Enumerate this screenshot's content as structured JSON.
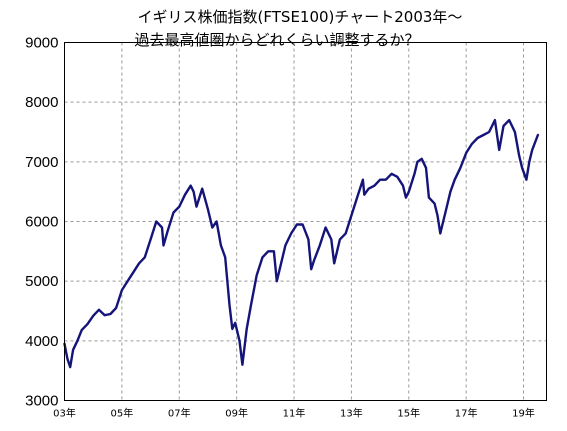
{
  "chart_data": {
    "type": "line",
    "title": [
      "イギリス株価指数(FTSE100)チャート2003年～",
      "過去最高値圏からどれくらい調整するか？"
    ],
    "xlabel": "",
    "ylabel": "",
    "ylim": [
      3000,
      9000
    ],
    "yticks": [
      "3000",
      "4000",
      "5000",
      "6000",
      "7000",
      "8000",
      "9000"
    ],
    "xlim": [
      2003,
      2019.8
    ],
    "xticks": [
      {
        "x": 2003,
        "label": "03年"
      },
      {
        "x": 2005,
        "label": "05年"
      },
      {
        "x": 2007,
        "label": "07年"
      },
      {
        "x": 2009,
        "label": "09年"
      },
      {
        "x": 2011,
        "label": "11年"
      },
      {
        "x": 2013,
        "label": "13年"
      },
      {
        "x": 2015,
        "label": "15年"
      },
      {
        "x": 2017,
        "label": "17年"
      },
      {
        "x": 2019,
        "label": "19年"
      }
    ],
    "grid": true,
    "legend": "none",
    "series": [
      {
        "color": "#14147a",
        "x": [
          2003.0,
          2003.1,
          2003.2,
          2003.3,
          2003.45,
          2003.6,
          2003.8,
          2004.0,
          2004.2,
          2004.4,
          2004.6,
          2004.8,
          2005.0,
          2005.2,
          2005.4,
          2005.6,
          2005.8,
          2006.0,
          2006.2,
          2006.4,
          2006.45,
          2006.6,
          2006.8,
          2007.0,
          2007.2,
          2007.4,
          2007.5,
          2007.6,
          2007.8,
          2008.0,
          2008.15,
          2008.3,
          2008.45,
          2008.6,
          2008.75,
          2008.85,
          2008.95,
          2009.1,
          2009.2,
          2009.35,
          2009.5,
          2009.7,
          2009.9,
          2010.1,
          2010.3,
          2010.4,
          2010.5,
          2010.7,
          2010.9,
          2011.1,
          2011.3,
          2011.5,
          2011.6,
          2011.7,
          2011.9,
          2012.1,
          2012.3,
          2012.4,
          2012.6,
          2012.8,
          2013.0,
          2013.2,
          2013.4,
          2013.45,
          2013.6,
          2013.8,
          2014.0,
          2014.2,
          2014.4,
          2014.6,
          2014.8,
          2014.9,
          2015.0,
          2015.2,
          2015.3,
          2015.45,
          2015.6,
          2015.7,
          2015.9,
          2016.0,
          2016.1,
          2016.3,
          2016.45,
          2016.6,
          2016.8,
          2017.0,
          2017.2,
          2017.4,
          2017.6,
          2017.8,
          2018.0,
          2018.15,
          2018.3,
          2018.4,
          2018.5,
          2018.7,
          2018.85,
          2018.95,
          2019.1,
          2019.2,
          2019.3,
          2019.5
        ],
        "y": [
          3950,
          3700,
          3560,
          3850,
          4000,
          4180,
          4280,
          4420,
          4520,
          4430,
          4450,
          4550,
          4850,
          5000,
          5150,
          5300,
          5400,
          5700,
          6000,
          5900,
          5600,
          5850,
          6150,
          6250,
          6450,
          6600,
          6500,
          6250,
          6550,
          6200,
          5900,
          6000,
          5600,
          5400,
          4600,
          4200,
          4300,
          4000,
          3600,
          4200,
          4600,
          5100,
          5400,
          5500,
          5500,
          5000,
          5200,
          5600,
          5800,
          5950,
          5950,
          5700,
          5200,
          5350,
          5600,
          5900,
          5700,
          5300,
          5700,
          5800,
          6100,
          6400,
          6700,
          6450,
          6550,
          6600,
          6700,
          6700,
          6800,
          6750,
          6600,
          6400,
          6500,
          6800,
          7000,
          7050,
          6900,
          6400,
          6300,
          6100,
          5800,
          6200,
          6500,
          6700,
          6900,
          7150,
          7300,
          7400,
          7450,
          7500,
          7700,
          7200,
          7600,
          7650,
          7700,
          7500,
          7100,
          6900,
          6700,
          7000,
          7200,
          7450
        ]
      }
    ]
  }
}
